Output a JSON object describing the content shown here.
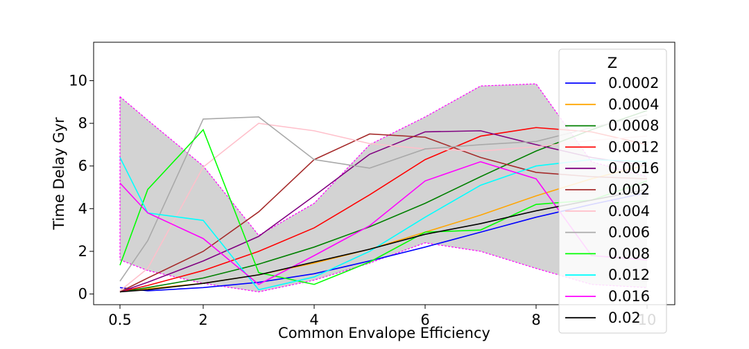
{
  "chart_data": {
    "type": "line",
    "xlabel": "Common Envalope Efficiency",
    "ylabel": "Time Delay Gyr",
    "x": [
      0.5,
      1,
      2,
      3,
      4,
      5,
      6,
      7,
      8,
      9,
      10
    ],
    "x_tick_labels": [
      "0.5",
      "2",
      "4",
      "6",
      "8",
      "10"
    ],
    "x_tick_values": [
      0.5,
      2,
      4,
      6,
      8,
      10
    ],
    "y_tick_values": [
      0,
      2,
      4,
      6,
      8,
      10
    ],
    "xlim": [
      0.5,
      10
    ],
    "ylim": [
      -0.5,
      11.8
    ],
    "legend_title": "Z",
    "legend_position": "upper right",
    "band": {
      "color": "#d3d3d3",
      "edge_color": "#ff00ff",
      "upper": [
        9.25,
        8.15,
        6.0,
        2.75,
        4.25,
        7.0,
        8.3,
        9.75,
        9.85,
        6.2,
        5.5
      ],
      "lower": [
        1.6,
        1.1,
        0.5,
        0.1,
        0.65,
        1.45,
        2.4,
        2.0,
        1.2,
        0.45,
        0.3
      ]
    },
    "series": [
      {
        "name": "0.0002",
        "color": "#0000ff",
        "values": [
          0.3,
          0.15,
          0.3,
          0.55,
          0.95,
          1.55,
          2.2,
          2.9,
          3.6,
          4.2,
          4.75
        ]
      },
      {
        "name": "0.0004",
        "color": "#ffa500",
        "values": [
          0.1,
          0.25,
          0.5,
          0.9,
          1.45,
          2.1,
          2.9,
          3.7,
          4.6,
          5.4,
          6.05
        ]
      },
      {
        "name": "0.0008",
        "color": "#008000",
        "values": [
          0.1,
          0.3,
          0.75,
          1.4,
          2.2,
          3.15,
          4.25,
          5.5,
          6.7,
          7.7,
          8.6
        ]
      },
      {
        "name": "0.0012",
        "color": "#ff0000",
        "values": [
          0.1,
          0.4,
          1.1,
          2.0,
          3.1,
          4.65,
          6.3,
          7.4,
          7.8,
          7.6,
          7.0
        ]
      },
      {
        "name": "0.0016",
        "color": "#800080",
        "values": [
          0.1,
          0.55,
          1.55,
          2.7,
          4.6,
          6.55,
          7.6,
          7.65,
          7.0,
          6.4,
          6.0
        ]
      },
      {
        "name": "0.002",
        "color": "#a52a2a",
        "values": [
          0.1,
          0.75,
          2.0,
          3.85,
          6.3,
          7.5,
          7.35,
          6.4,
          5.7,
          5.5,
          5.4
        ]
      },
      {
        "name": "0.004",
        "color": "#ffc0cb",
        "values": [
          0.15,
          1.2,
          5.95,
          8.0,
          7.65,
          7.05,
          6.8,
          6.7,
          6.9,
          7.2,
          7.4
        ]
      },
      {
        "name": "0.006",
        "color": "#a9a9a9",
        "values": [
          0.6,
          2.5,
          8.2,
          8.3,
          6.3,
          5.9,
          6.8,
          7.0,
          7.15,
          7.8,
          8.4
        ]
      },
      {
        "name": "0.008",
        "color": "#00ff00",
        "values": [
          1.35,
          4.9,
          7.7,
          1.0,
          0.45,
          1.5,
          2.9,
          3.0,
          4.2,
          4.4,
          5.3
        ]
      },
      {
        "name": "0.012",
        "color": "#00ffff",
        "values": [
          6.4,
          3.8,
          3.45,
          0.2,
          0.8,
          2.0,
          3.6,
          5.1,
          6.0,
          6.3,
          6.2
        ]
      },
      {
        "name": "0.016",
        "color": "#ff00ff",
        "values": [
          5.2,
          3.8,
          2.6,
          0.45,
          1.8,
          3.2,
          5.3,
          6.2,
          5.4,
          1.8,
          1.6
        ]
      },
      {
        "name": "0.02",
        "color": "#000000",
        "values": [
          0.1,
          0.2,
          0.5,
          0.9,
          1.5,
          2.1,
          2.8,
          3.3,
          3.9,
          4.4,
          4.9
        ]
      }
    ]
  }
}
